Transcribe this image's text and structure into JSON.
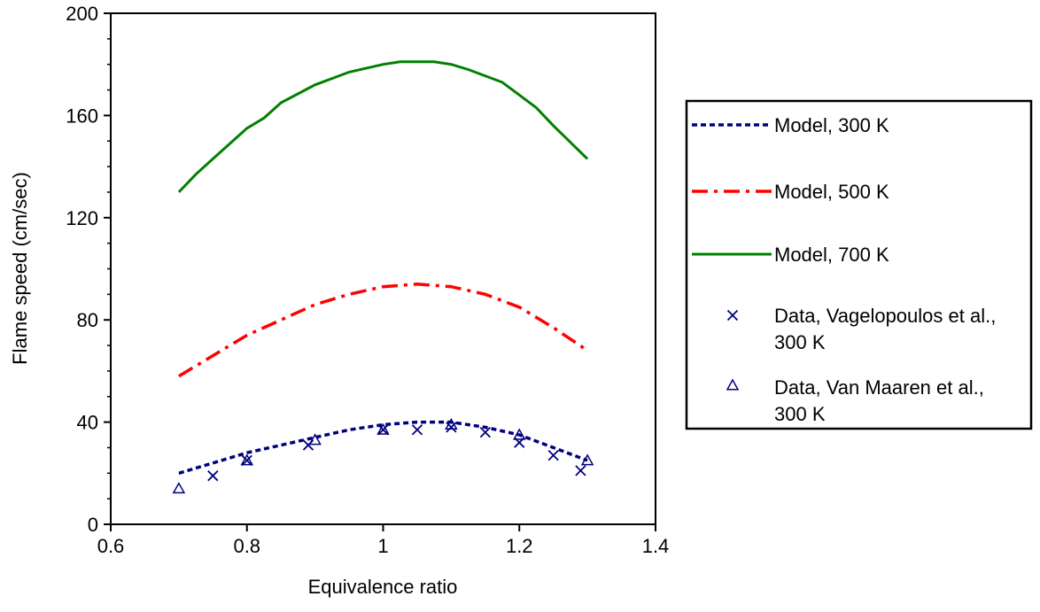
{
  "chart_data": {
    "type": "line",
    "xlabel": "Equivalence ratio",
    "ylabel": "Flame speed (cm/sec)",
    "xlim": [
      0.6,
      1.4
    ],
    "ylim": [
      0,
      200
    ],
    "xticks": [
      0.6,
      0.8,
      1,
      1.2,
      1.4
    ],
    "xtick_labels": [
      "0.6",
      "0.8",
      "1",
      "1.2",
      "1.4"
    ],
    "yticks": [
      0,
      40,
      80,
      120,
      160,
      200
    ],
    "ytick_labels": [
      "0",
      "40",
      "80",
      "120",
      "160",
      "200"
    ],
    "grid": false,
    "legend_position": "right",
    "series": [
      {
        "name": "Model, 300 K",
        "kind": "line",
        "style": "dotted",
        "color": "#000080",
        "x": [
          0.7,
          0.75,
          0.8,
          0.85,
          0.9,
          0.95,
          1.0,
          1.05,
          1.1,
          1.15,
          1.2,
          1.25,
          1.3
        ],
        "y": [
          20,
          24,
          28,
          31,
          34,
          37,
          39,
          40,
          40,
          38,
          35,
          30,
          25
        ]
      },
      {
        "name": "Model, 500 K",
        "kind": "line",
        "style": "dashdot",
        "color": "#ff0000",
        "x": [
          0.7,
          0.75,
          0.8,
          0.85,
          0.9,
          0.95,
          1.0,
          1.05,
          1.1,
          1.15,
          1.2,
          1.25,
          1.3
        ],
        "y": [
          58,
          66,
          74,
          80,
          86,
          90,
          93,
          94,
          93,
          90,
          85,
          77,
          68
        ]
      },
      {
        "name": "Model, 700 K",
        "kind": "line",
        "style": "solid",
        "color": "#008000",
        "x": [
          0.7,
          0.725,
          0.75,
          0.775,
          0.8,
          0.825,
          0.85,
          0.9,
          0.95,
          1.0,
          1.025,
          1.05,
          1.075,
          1.1,
          1.125,
          1.175,
          1.2,
          1.225,
          1.25,
          1.3
        ],
        "y": [
          130,
          137,
          143,
          149,
          155,
          159,
          165,
          172,
          177,
          180,
          181,
          181,
          181,
          180,
          178,
          173,
          168,
          163,
          156,
          143
        ]
      },
      {
        "name": "Data, Vagelopoulos et al., 300 K",
        "kind": "scatter",
        "marker": "x",
        "color": "#000080",
        "x": [
          0.75,
          0.8,
          0.89,
          1.0,
          1.05,
          1.1,
          1.15,
          1.2,
          1.25,
          1.29
        ],
        "y": [
          19,
          25,
          31,
          37,
          37,
          38,
          36,
          32,
          27,
          21
        ]
      },
      {
        "name": "Data, Van Maaren et al., 300 K",
        "kind": "scatter",
        "marker": "triangle",
        "color": "#000080",
        "x": [
          0.7,
          0.8,
          0.9,
          1.0,
          1.1,
          1.2,
          1.3
        ],
        "y": [
          14,
          25,
          33,
          37,
          39,
          35,
          25
        ]
      }
    ],
    "legend": [
      {
        "lines": [
          "Model, 300 K"
        ]
      },
      {
        "lines": [
          "Model, 500 K"
        ]
      },
      {
        "lines": [
          "Model, 700 K"
        ]
      },
      {
        "lines": [
          "Data, Vagelopoulos et al.,",
          "300 K"
        ]
      },
      {
        "lines": [
          "Data, Van Maaren et al.,",
          "300 K"
        ]
      }
    ]
  }
}
